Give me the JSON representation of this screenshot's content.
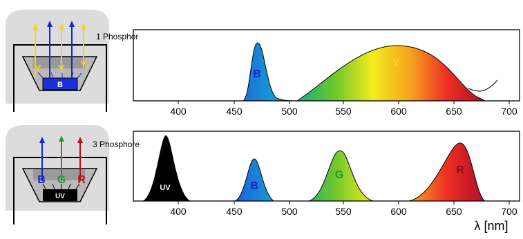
{
  "top": {
    "label": "1 Phosphor",
    "led": {
      "chip_label": "B",
      "arrow_labels": [
        "Y",
        "Y",
        "Y"
      ],
      "arrow_colors": [
        "#f6d21b",
        "#1b24c8",
        "#f6d21b",
        "#1b24c8",
        "#f6d21b"
      ]
    },
    "spectrum_labels": {
      "blue": "B",
      "yellow": "Y"
    }
  },
  "bottom": {
    "label": "3 Phosphore",
    "led": {
      "chip_label": "UV",
      "arrow_labels": [
        "B",
        "G",
        "R"
      ],
      "arrow_colors": [
        "#1b24c8",
        "#1f9a2a",
        "#b3121a"
      ]
    },
    "spectrum_labels": {
      "uv": "UV",
      "blue": "B",
      "green": "G",
      "red": "R"
    }
  },
  "axis": {
    "ticks": [
      "400",
      "450",
      "500",
      "550",
      "600",
      "650",
      "700"
    ],
    "unit_label": "λ [nm]"
  },
  "colors": {
    "blue": "#1a4fd0",
    "yellow": "#f5dc1e",
    "green": "#1f9a2a",
    "red": "#c0182a",
    "lamp_body": "#dcdcdc",
    "reflector": "#b9b9b9"
  }
}
